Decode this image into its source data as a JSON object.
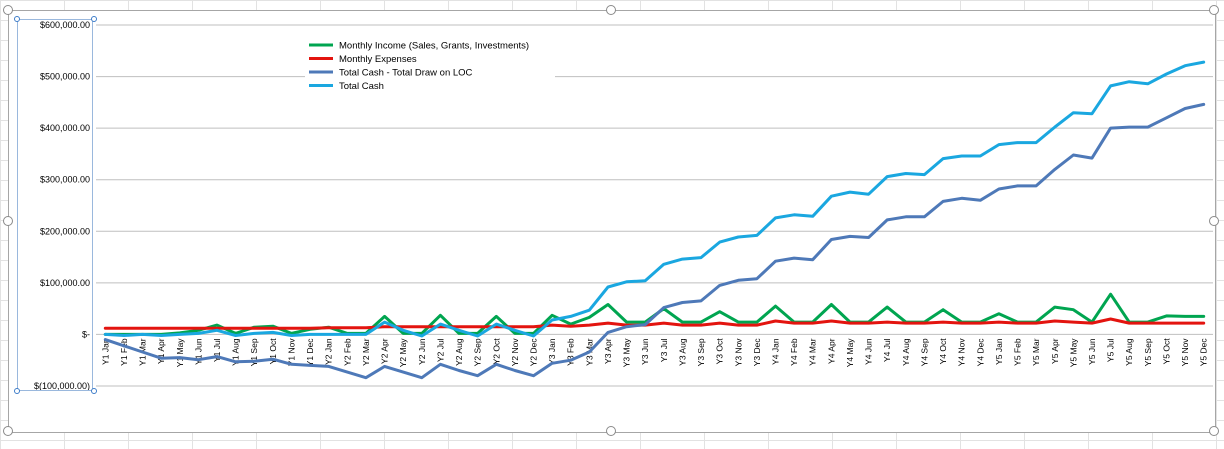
{
  "chart_data": {
    "type": "line",
    "title": "",
    "xlabel": "",
    "ylabel": "",
    "ylim": [
      -100000,
      600000
    ],
    "yticks": [
      -100000,
      0,
      100000,
      200000,
      300000,
      400000,
      500000,
      600000
    ],
    "ytick_labels": [
      "$(100,000.00)",
      "$-",
      "$100,000.00",
      "$200,000.00",
      "$300,000.00",
      "$400,000.00",
      "$500,000.00",
      "$600,000.00"
    ],
    "grid": true,
    "legend_position": "top-left",
    "categories": [
      "Y1 Jan",
      "Y1 Feb",
      "Y1 Mar",
      "Y1 Apr",
      "Y1 May",
      "Y1 Jun",
      "Y1 Jul",
      "Y1 Aug",
      "Y1 Sep",
      "Y1 Oct",
      "Y1 Nov",
      "Y1 Dec",
      "Y2 Jan",
      "Y2 Feb",
      "Y2 Mar",
      "Y2 Apr",
      "Y2 May",
      "Y2 Jun",
      "Y2 Jul",
      "Y2 Aug",
      "Y2 Sep",
      "Y2 Oct",
      "Y2 Nov",
      "Y2 Dec",
      "Y3 Jan",
      "Y3 Feb",
      "Y3 Mar",
      "Y3 Apr",
      "Y3 May",
      "Y3 Jun",
      "Y3 Jul",
      "Y3 Aug",
      "Y3 Sep",
      "Y3 Oct",
      "Y3 Nov",
      "Y3 Dec",
      "Y4 Jan",
      "Y4 Feb",
      "Y4 Mar",
      "Y4 Apr",
      "Y4 May",
      "Y4 Jun",
      "Y4 Jul",
      "Y4 Aug",
      "Y4 Sep",
      "Y4 Oct",
      "Y4 Nov",
      "Y4 Dec",
      "Y5 Jan",
      "Y5 Feb",
      "Y5 Mar",
      "Y5 Apr",
      "Y5 May",
      "Y5 Jun",
      "Y5 Jul",
      "Y5 Aug",
      "Y5 Sep",
      "Y5 Oct",
      "Y5 Nov",
      "Y5 Dec"
    ],
    "series": [
      {
        "name": "Monthly Income (Sales, Grants, Investments)",
        "color": "#00a550",
        "values": [
          0,
          0,
          0,
          0,
          3000,
          8000,
          18000,
          2000,
          14000,
          16000,
          2000,
          10000,
          14000,
          2000,
          2000,
          35000,
          2000,
          2000,
          37000,
          2000,
          2000,
          35000,
          2000,
          2000,
          37000,
          20000,
          33000,
          58000,
          24000,
          24000,
          50000,
          24000,
          24000,
          44000,
          24000,
          24000,
          55000,
          24000,
          24000,
          58000,
          24000,
          24000,
          53000,
          24000,
          24000,
          48000,
          24000,
          24000,
          40000,
          24000,
          24000,
          53000,
          48000,
          24000,
          78000,
          24000,
          24000,
          36000,
          35000,
          35000
        ]
      },
      {
        "name": "Monthly Expenses",
        "color": "#e3140f",
        "values": [
          12000,
          12000,
          12000,
          12000,
          12000,
          12000,
          12000,
          12000,
          12000,
          12000,
          12000,
          12000,
          13000,
          13000,
          13000,
          15000,
          15000,
          15000,
          15000,
          15000,
          15000,
          15000,
          15000,
          15000,
          18000,
          16000,
          18000,
          22000,
          18000,
          18000,
          22000,
          18000,
          18000,
          22000,
          18000,
          18000,
          26000,
          22000,
          22000,
          26000,
          22000,
          22000,
          24000,
          22000,
          22000,
          24000,
          22000,
          22000,
          24000,
          22000,
          22000,
          26000,
          24000,
          22000,
          30000,
          22000,
          22000,
          22000,
          22000,
          22000
        ]
      },
      {
        "name": "Total Cash - Total Draw on LOC",
        "color": "#4e79b8",
        "values": [
          -10000,
          -22000,
          -34000,
          -46000,
          -45000,
          -49000,
          -43000,
          -53000,
          -52000,
          -48000,
          -58000,
          -60000,
          -62000,
          -73000,
          -84000,
          -62000,
          -73000,
          -84000,
          -58000,
          -70000,
          -80000,
          -58000,
          -70000,
          -80000,
          -56000,
          -50000,
          -34000,
          4000,
          15000,
          19000,
          52000,
          62000,
          65000,
          95000,
          105000,
          108000,
          142000,
          148000,
          145000,
          184000,
          190000,
          188000,
          222000,
          228000,
          228000,
          258000,
          264000,
          260000,
          282000,
          288000,
          288000,
          320000,
          348000,
          342000,
          400000,
          402000,
          402000,
          420000,
          438000,
          446000
        ]
      },
      {
        "name": "Total Cash",
        "color": "#1aa7e0",
        "values": [
          0,
          -2000,
          0,
          -2000,
          0,
          2000,
          8000,
          -2000,
          2000,
          4000,
          -2000,
          0,
          0,
          0,
          0,
          24000,
          8000,
          -3000,
          20000,
          8000,
          -3000,
          20000,
          8000,
          -3000,
          28000,
          35000,
          47000,
          92000,
          102000,
          104000,
          136000,
          146000,
          149000,
          179000,
          189000,
          192000,
          226000,
          232000,
          229000,
          268000,
          276000,
          272000,
          306000,
          312000,
          310000,
          341000,
          346000,
          346000,
          368000,
          372000,
          372000,
          402000,
          430000,
          428000,
          482000,
          490000,
          486000,
          505000,
          521000,
          528000
        ]
      }
    ]
  }
}
